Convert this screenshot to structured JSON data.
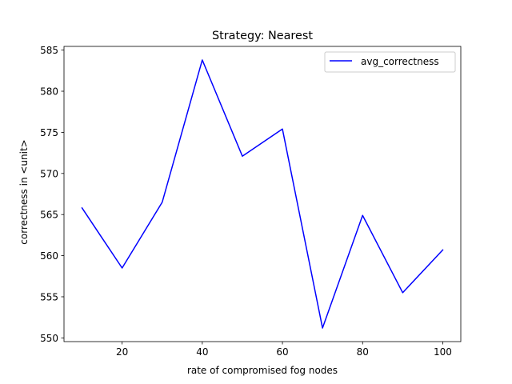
{
  "chart_data": {
    "type": "line",
    "title": "Strategy: Nearest",
    "xlabel": "rate of compromised fog nodes",
    "ylabel": "correctness in <unit>",
    "x": [
      10,
      20,
      30,
      40,
      50,
      60,
      70,
      80,
      90,
      100
    ],
    "series": [
      {
        "name": "avg_correctness",
        "color": "#0000ff",
        "values": [
          565.8,
          558.5,
          566.5,
          583.8,
          572.1,
          575.4,
          551.2,
          564.9,
          555.5,
          560.7
        ]
      }
    ],
    "xlim": [
      5.5,
      104.5
    ],
    "ylim": [
      549.55,
      585.45
    ],
    "xticks": [
      20,
      40,
      60,
      80,
      100
    ],
    "yticks": [
      550,
      555,
      560,
      565,
      570,
      575,
      580,
      585
    ],
    "grid": false,
    "legend_position": "upper right"
  }
}
